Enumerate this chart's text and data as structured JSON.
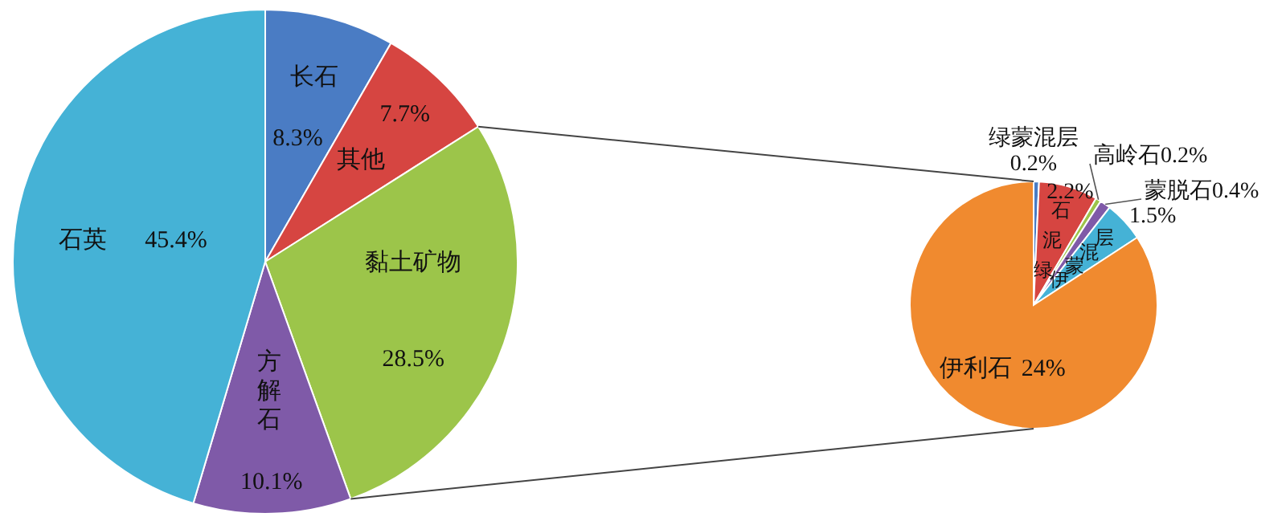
{
  "chart_data": [
    {
      "type": "pie",
      "categories": [
        "长石",
        "其他",
        "黏土矿物",
        "方解石",
        "石英"
      ],
      "values": [
        8.3,
        7.7,
        28.5,
        10.1,
        45.4
      ],
      "colors": [
        "#4a7cc4",
        "#d64541",
        "#9cc54a",
        "#7f5aa8",
        "#45b2d6"
      ],
      "value_labels": [
        "8.3%",
        "7.7%",
        "28.5%",
        "10.1%",
        "45.4%"
      ]
    },
    {
      "type": "pie",
      "categories": [
        "绿蒙混层",
        "绿泥石",
        "高岭石",
        "蒙脱石",
        "伊蒙混层",
        "伊利石"
      ],
      "values": [
        0.2,
        2.2,
        0.2,
        0.4,
        1.5,
        24
      ],
      "colors": [
        "#4a7cc4",
        "#d64541",
        "#9cc54a",
        "#7f5aa8",
        "#45b2d6",
        "#f08a2f"
      ],
      "value_labels": [
        "0.2%",
        "2.2%",
        "0.2%",
        "0.4%",
        "1.5%",
        "24%"
      ]
    }
  ]
}
